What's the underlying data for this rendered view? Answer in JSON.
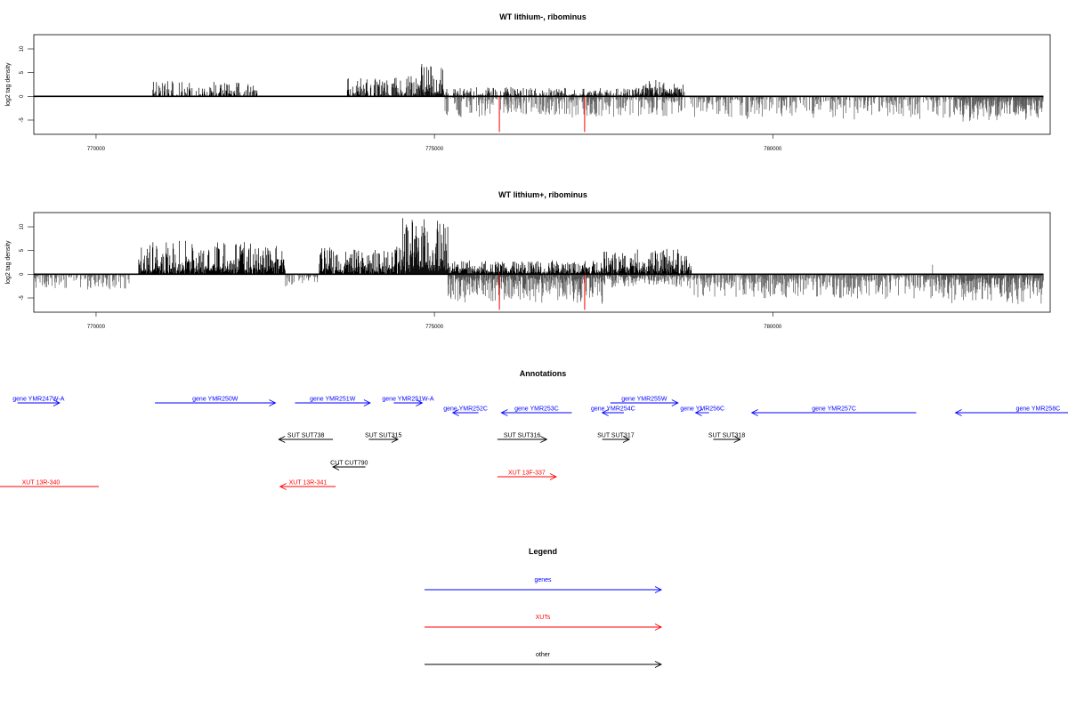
{
  "chart_data": [
    {
      "type": "bar",
      "title": "WT lithium-, ribominus",
      "ylabel": "log2 tag density",
      "xticks": [
        "770000",
        "775000",
        "780000"
      ],
      "yticks": [
        "10",
        "5",
        "0",
        "-5"
      ],
      "xlim": [
        769080,
        784100
      ],
      "ylim": [
        -8,
        13
      ],
      "profile": [
        {
          "from": 770820,
          "to": 772400,
          "max": 3.5,
          "min": 0,
          "density": 0.45
        },
        {
          "from": 773700,
          "to": 774400,
          "max": 4,
          "min": 0,
          "density": 0.55
        },
        {
          "from": 774400,
          "to": 774800,
          "max": 4.5,
          "min": 0,
          "density": 0.75
        },
        {
          "from": 774800,
          "to": 775150,
          "max": 7,
          "min": 0,
          "density": 0.95
        },
        {
          "from": 775150,
          "to": 778700,
          "max": 2,
          "min": -4.5,
          "density": 0.6
        },
        {
          "from": 777950,
          "to": 778700,
          "max": 3.5,
          "min": 0,
          "density": 0.5
        },
        {
          "from": 778700,
          "to": 784000,
          "max": 0,
          "min": -5,
          "density": 0.5
        },
        {
          "from": 782700,
          "to": 784000,
          "max": 0,
          "min": -5.5,
          "density": 0.85
        }
      ],
      "highlights": [
        {
          "x": 775960,
          "value": -7.5,
          "color": "#ff0000"
        },
        {
          "x": 777220,
          "value": -7.5,
          "color": "#ff0000"
        }
      ]
    },
    {
      "type": "bar",
      "title": "WT lithium+, ribominus",
      "ylabel": "log2 tag density",
      "xticks": [
        "770000",
        "775000",
        "780000"
      ],
      "yticks": [
        "10",
        "5",
        "0",
        "-5"
      ],
      "xlim": [
        769080,
        784100
      ],
      "ylim": [
        -8,
        13
      ],
      "profile": [
        {
          "from": 769080,
          "to": 770500,
          "max": 0,
          "min": -3.5,
          "density": 0.5
        },
        {
          "from": 770630,
          "to": 772800,
          "max": 7.5,
          "min": 0,
          "density": 0.95
        },
        {
          "from": 772800,
          "to": 773300,
          "max": 0,
          "min": -3,
          "density": 0.4
        },
        {
          "from": 773300,
          "to": 774500,
          "max": 6,
          "min": 0,
          "density": 0.9
        },
        {
          "from": 774500,
          "to": 775200,
          "max": 12,
          "min": 0,
          "density": 1.0
        },
        {
          "from": 775200,
          "to": 777500,
          "max": 3,
          "min": -6.5,
          "density": 0.95
        },
        {
          "from": 777500,
          "to": 778800,
          "max": 5.5,
          "min": -3,
          "density": 0.9
        },
        {
          "from": 778800,
          "to": 782500,
          "max": 0,
          "min": -5.5,
          "density": 0.7
        },
        {
          "from": 782500,
          "to": 784000,
          "max": 0,
          "min": -6.5,
          "density": 0.95
        }
      ],
      "highlights": [
        {
          "x": 775960,
          "value": -7.5,
          "color": "#ff0000"
        },
        {
          "x": 777220,
          "value": -7.5,
          "color": "#ff0000"
        },
        {
          "x": 782360,
          "value": 2,
          "color": "#888888"
        }
      ]
    }
  ],
  "annotations": {
    "title": "Annotations",
    "items": [
      {
        "label": "gene YMR247W-A",
        "kind": "gene",
        "start": 768840,
        "end": 769460,
        "strand": "+",
        "row": 0
      },
      {
        "label": "gene YMR250W",
        "kind": "gene",
        "start": 770870,
        "end": 772650,
        "strand": "+",
        "row": 0
      },
      {
        "label": "gene YMR251W",
        "kind": "gene",
        "start": 772940,
        "end": 774050,
        "strand": "+",
        "row": 0
      },
      {
        "label": "gene YMR251W-A",
        "kind": "gene",
        "start": 774400,
        "end": 774820,
        "strand": "+",
        "row": 0
      },
      {
        "label": "gene YMR252C",
        "kind": "gene",
        "start": 775270,
        "end": 775650,
        "strand": "-",
        "row": 1
      },
      {
        "label": "gene YMR253C",
        "kind": "gene",
        "start": 775990,
        "end": 777030,
        "strand": "-",
        "row": 1
      },
      {
        "label": "gene YMR254C",
        "kind": "gene",
        "start": 777480,
        "end": 777800,
        "strand": "-",
        "row": 1
      },
      {
        "label": "gene YMR255W",
        "kind": "gene",
        "start": 777600,
        "end": 778600,
        "strand": "+",
        "row": 0
      },
      {
        "label": "gene YMR256C",
        "kind": "gene",
        "start": 778860,
        "end": 779060,
        "strand": "-",
        "row": 1
      },
      {
        "label": "gene YMR257C",
        "kind": "gene",
        "start": 779690,
        "end": 782120,
        "strand": "-",
        "row": 1
      },
      {
        "label": "gene YMR258C",
        "kind": "gene",
        "start": 782700,
        "end": 785140,
        "strand": "-",
        "row": 1
      },
      {
        "label": "SUT SUT738",
        "kind": "other",
        "start": 772700,
        "end": 773500,
        "strand": "-",
        "row": 2
      },
      {
        "label": "SUT SUT315",
        "kind": "other",
        "start": 774030,
        "end": 774460,
        "strand": "+",
        "row": 2
      },
      {
        "label": "SUT SUT316",
        "kind": "other",
        "start": 775930,
        "end": 776660,
        "strand": "+",
        "row": 2
      },
      {
        "label": "SUT SUT317",
        "kind": "other",
        "start": 777480,
        "end": 777880,
        "strand": "+",
        "row": 2
      },
      {
        "label": "SUT SUT318",
        "kind": "other",
        "start": 779120,
        "end": 779520,
        "strand": "+",
        "row": 2
      },
      {
        "label": "CUT CUT790",
        "kind": "other",
        "start": 773500,
        "end": 773980,
        "strand": "-",
        "row": 3
      },
      {
        "label": "XUT 13F-337",
        "kind": "xut",
        "start": 775930,
        "end": 776800,
        "strand": "+",
        "row": 4
      },
      {
        "label": "XUT 13R-340",
        "kind": "xut",
        "start": 768330,
        "end": 770040,
        "strand": "-",
        "row": 5
      },
      {
        "label": "XUT 13R-341",
        "kind": "xut",
        "start": 772720,
        "end": 773540,
        "strand": "-",
        "row": 5
      }
    ]
  },
  "legend": {
    "title": "Legend",
    "items": [
      {
        "label": "genes",
        "color": "#0000ff"
      },
      {
        "label": "XUTs",
        "color": "#ff0000"
      },
      {
        "label": "other",
        "color": "#000000"
      }
    ]
  }
}
